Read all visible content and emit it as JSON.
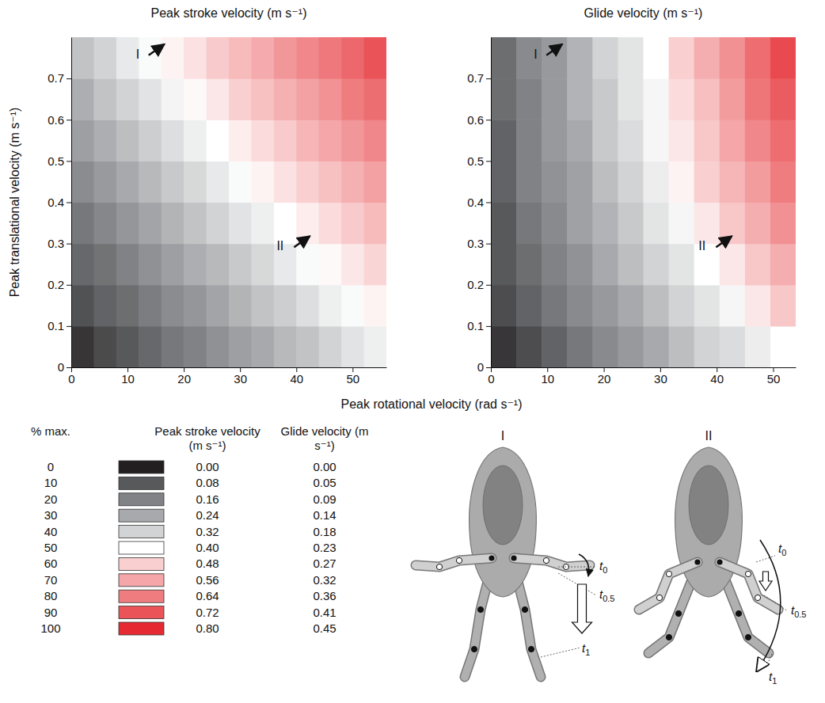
{
  "chart_data": [
    {
      "type": "heatmap",
      "title": "Peak stroke velocity (m s⁻¹)",
      "x": [
        2,
        6,
        10,
        14,
        18,
        22,
        26,
        30,
        34,
        38,
        42,
        46,
        50,
        54
      ],
      "y": [
        0.05,
        0.15,
        0.25,
        0.35,
        0.45,
        0.55,
        0.65,
        0.75
      ],
      "z": [
        [
          0.03,
          0.06,
          0.08,
          0.11,
          0.14,
          0.16,
          0.19,
          0.22,
          0.24,
          0.27,
          0.29,
          0.32,
          0.35,
          0.37
        ],
        [
          0.07,
          0.1,
          0.12,
          0.15,
          0.18,
          0.2,
          0.23,
          0.26,
          0.29,
          0.31,
          0.34,
          0.37,
          0.39,
          0.42
        ],
        [
          0.11,
          0.13,
          0.16,
          0.19,
          0.22,
          0.25,
          0.27,
          0.3,
          0.33,
          0.36,
          0.39,
          0.41,
          0.44,
          0.47
        ],
        [
          0.14,
          0.17,
          0.2,
          0.23,
          0.26,
          0.29,
          0.32,
          0.35,
          0.37,
          0.4,
          0.43,
          0.46,
          0.49,
          0.52
        ],
        [
          0.18,
          0.21,
          0.24,
          0.27,
          0.3,
          0.33,
          0.36,
          0.39,
          0.42,
          0.45,
          0.48,
          0.51,
          0.54,
          0.57
        ],
        [
          0.22,
          0.25,
          0.28,
          0.31,
          0.34,
          0.37,
          0.4,
          0.43,
          0.46,
          0.49,
          0.53,
          0.56,
          0.59,
          0.62
        ],
        [
          0.25,
          0.29,
          0.32,
          0.35,
          0.38,
          0.41,
          0.44,
          0.48,
          0.51,
          0.54,
          0.57,
          0.6,
          0.64,
          0.67
        ],
        [
          0.29,
          0.32,
          0.36,
          0.39,
          0.42,
          0.45,
          0.49,
          0.52,
          0.55,
          0.59,
          0.62,
          0.65,
          0.68,
          0.72
        ]
      ],
      "xlim": [
        0,
        56
      ],
      "ylim": [
        0,
        0.8
      ],
      "xticks": [
        0,
        10,
        20,
        30,
        40,
        50
      ],
      "yticks": [
        0,
        0.1,
        0.2,
        0.3,
        0.4,
        0.5,
        0.6,
        0.7
      ],
      "annotations": [
        {
          "text": "I",
          "x": 11.5,
          "y": 0.76
        },
        {
          "text": "II",
          "x": 36.5,
          "y": 0.295
        }
      ]
    },
    {
      "type": "heatmap",
      "title": "Glide velocity (m s⁻¹)",
      "x": [
        2.25,
        6.75,
        11.25,
        15.75,
        20.25,
        24.75,
        29.25,
        33.75,
        38.25,
        42.75,
        47.25,
        51.75
      ],
      "y": [
        0.05,
        0.15,
        0.25,
        0.35,
        0.45,
        0.55,
        0.65,
        0.75
      ],
      "z": [
        [
          0.02,
          0.04,
          0.06,
          0.08,
          0.1,
          0.12,
          0.14,
          0.16,
          0.18,
          0.19,
          0.21,
          0.23
        ],
        [
          0.04,
          0.06,
          0.08,
          0.1,
          0.12,
          0.14,
          0.16,
          0.18,
          0.2,
          0.22,
          0.25,
          0.28
        ],
        [
          0.05,
          0.07,
          0.09,
          0.11,
          0.14,
          0.16,
          0.18,
          0.2,
          0.23,
          0.25,
          0.28,
          0.31
        ],
        [
          0.05,
          0.08,
          0.1,
          0.13,
          0.15,
          0.17,
          0.2,
          0.22,
          0.25,
          0.28,
          0.31,
          0.34
        ],
        [
          0.06,
          0.09,
          0.11,
          0.13,
          0.16,
          0.18,
          0.21,
          0.24,
          0.27,
          0.3,
          0.33,
          0.36
        ],
        [
          0.06,
          0.09,
          0.12,
          0.14,
          0.17,
          0.19,
          0.22,
          0.25,
          0.28,
          0.32,
          0.35,
          0.38
        ],
        [
          0.07,
          0.09,
          0.12,
          0.15,
          0.17,
          0.2,
          0.22,
          0.26,
          0.29,
          0.33,
          0.37,
          0.4
        ],
        [
          0.07,
          0.1,
          0.12,
          0.15,
          0.18,
          0.2,
          0.23,
          0.27,
          0.31,
          0.34,
          0.38,
          0.42
        ]
      ],
      "xlim": [
        0,
        54
      ],
      "ylim": [
        0,
        0.8
      ],
      "xticks": [
        0,
        10,
        20,
        30,
        40,
        50
      ],
      "yticks": [
        0,
        0.1,
        0.2,
        0.3,
        0.4,
        0.5,
        0.6,
        0.7
      ],
      "annotations": [
        {
          "text": "I",
          "x": 7.6,
          "y": 0.76
        },
        {
          "text": "II",
          "x": 36.8,
          "y": 0.295
        }
      ]
    }
  ],
  "axis_titles": {
    "x": "Peak rotational velocity (rad s⁻¹)",
    "y": "Peak translational velocity (m s⁻¹)"
  },
  "color_key": {
    "title": "% max.",
    "percent": [
      0,
      10,
      20,
      30,
      40,
      50,
      60,
      70,
      80,
      90,
      100
    ],
    "colors": [
      "#231f20",
      "#58595b",
      "#808285",
      "#a7a9ac",
      "#d1d3d4",
      "#ffffff",
      "#f9cfd0",
      "#f4a6a8",
      "#ef7d80",
      "#ea5459",
      "#e52b31"
    ],
    "columns": [
      {
        "title": "Peak stroke velocity (m s⁻¹)",
        "values": [
          0,
          0.08,
          0.16,
          0.24,
          0.32,
          0.4,
          0.48,
          0.56,
          0.64,
          0.72,
          0.8
        ],
        "value_labels": [
          "0.00",
          "0.08",
          "0.16",
          "0.24",
          "0.32",
          "0.40",
          "0.48",
          "0.56",
          "0.64",
          "0.72",
          "0.80"
        ]
      },
      {
        "title": "Glide velocity (m s⁻¹)",
        "values": [
          0,
          0.05,
          0.09,
          0.14,
          0.18,
          0.23,
          0.27,
          0.32,
          0.36,
          0.41,
          0.45
        ],
        "value_labels": [
          "0.00",
          "0.05",
          "0.09",
          "0.14",
          "0.18",
          "0.23",
          "0.27",
          "0.32",
          "0.36",
          "0.41",
          "0.45"
        ]
      }
    ]
  },
  "diagram": {
    "panels": [
      {
        "label": "I",
        "times": [
          {
            "base": "t",
            "sub": "0"
          },
          {
            "base": "t",
            "sub": "0.5"
          },
          {
            "base": "t",
            "sub": "1"
          }
        ]
      },
      {
        "label": "II",
        "times": [
          {
            "base": "t",
            "sub": "0"
          },
          {
            "base": "t",
            "sub": "0.5"
          },
          {
            "base": "t",
            "sub": "1"
          }
        ]
      }
    ]
  }
}
